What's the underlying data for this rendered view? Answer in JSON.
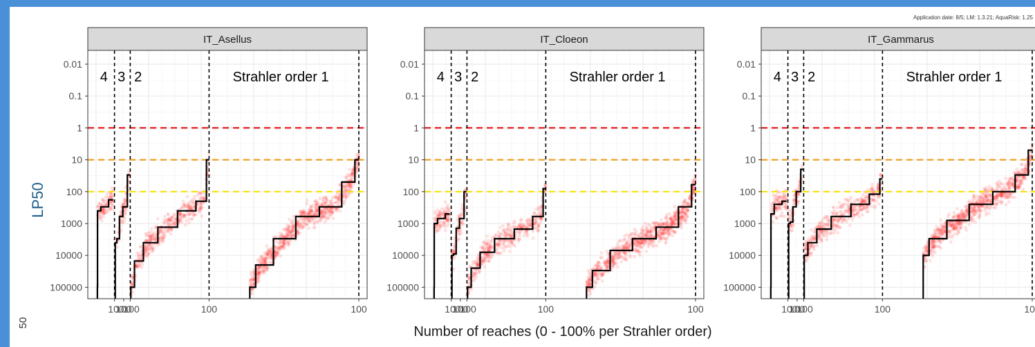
{
  "note": "Application date: 8/5; LM: 1.3.21; AquaRisk: 1.25",
  "corner_label": "50",
  "chart_data": {
    "type": "scatter",
    "y_label": "LP50",
    "x_label": "Number of reaches (0 - 100% per Strahler order)",
    "y_scale": "log, reversed",
    "y_ticks": [
      "0.01",
      "0.1",
      "1",
      "10",
      "100",
      "1000",
      "10000",
      "100000"
    ],
    "x_ticks": [
      "100",
      "100",
      "100",
      "100",
      "100"
    ],
    "reference_lines": [
      {
        "value": 1,
        "color": "#e31a1c"
      },
      {
        "value": 10,
        "color": "#f0a020"
      },
      {
        "value": 100,
        "color": "#f5e200"
      }
    ],
    "order_labels": [
      "4",
      "3",
      "2",
      "Strahler order 1"
    ],
    "order_segments": [
      {
        "order": "4",
        "from": 0,
        "to": 7
      },
      {
        "order": "3",
        "from": 7,
        "to": 13
      },
      {
        "order": "2",
        "from": 13,
        "to": 43
      },
      {
        "order": "1",
        "from": 43,
        "to": 100
      }
    ],
    "grid": true,
    "panels": [
      {
        "name": "IT_Asellus",
        "median": [
          {
            "segment": "4",
            "points": [
              [
                0.5,
                100000
              ],
              [
                0.6,
                400
              ],
              [
                3,
                300
              ],
              [
                6.5,
                180
              ]
            ]
          },
          {
            "segment": "3",
            "points": [
              [
                7.3,
                4000
              ],
              [
                8.5,
                3000
              ],
              [
                9.3,
                600
              ],
              [
                11,
                300
              ],
              [
                12.8,
                30
              ]
            ]
          },
          {
            "segment": "2",
            "points": [
              [
                13.2,
                100000
              ],
              [
                16,
                15000
              ],
              [
                20,
                4000
              ],
              [
                27,
                1300
              ],
              [
                35,
                400
              ],
              [
                41,
                200
              ],
              [
                43,
                10
              ]
            ]
          },
          {
            "segment": "1",
            "points": [
              [
                58.5,
                100000
              ],
              [
                63,
                20000
              ],
              [
                72,
                3000
              ],
              [
                80,
                600
              ],
              [
                90,
                300
              ],
              [
                97,
                50
              ],
              [
                100,
                10
              ]
            ]
          }
        ]
      },
      {
        "name": "IT_Cloeon",
        "median": [
          {
            "segment": "4",
            "points": [
              [
                0.5,
                100000
              ],
              [
                0.6,
                1000
              ],
              [
                3,
                700
              ],
              [
                6.5,
                500
              ]
            ]
          },
          {
            "segment": "3",
            "points": [
              [
                7.3,
                10000
              ],
              [
                8.5,
                9000
              ],
              [
                9.3,
                1400
              ],
              [
                11,
                700
              ],
              [
                12.8,
                100
              ]
            ]
          },
          {
            "segment": "2",
            "points": [
              [
                13.2,
                100000
              ],
              [
                16,
                25000
              ],
              [
                20,
                8000
              ],
              [
                27,
                3000
              ],
              [
                35,
                1500
              ],
              [
                41,
                600
              ],
              [
                43,
                80
              ]
            ]
          },
          {
            "segment": "1",
            "points": [
              [
                58.5,
                100000
              ],
              [
                63,
                30000
              ],
              [
                72,
                7000
              ],
              [
                80,
                3000
              ],
              [
                90,
                1300
              ],
              [
                97,
                300
              ],
              [
                100,
                60
              ]
            ]
          }
        ]
      },
      {
        "name": "IT_Gammarus",
        "median": [
          {
            "segment": "4",
            "points": [
              [
                0.5,
                100000
              ],
              [
                0.6,
                500
              ],
              [
                3,
                250
              ],
              [
                6.5,
                200
              ]
            ]
          },
          {
            "segment": "3",
            "points": [
              [
                7.3,
                1000
              ],
              [
                8.5,
                900
              ],
              [
                9.3,
                300
              ],
              [
                11,
                100
              ],
              [
                12.8,
                20
              ]
            ]
          },
          {
            "segment": "2",
            "points": [
              [
                13.2,
                10000
              ],
              [
                16,
                4000
              ],
              [
                20,
                1500
              ],
              [
                27,
                600
              ],
              [
                35,
                250
              ],
              [
                41,
                120
              ],
              [
                43,
                40
              ]
            ]
          },
          {
            "segment": "1",
            "points": [
              [
                58.5,
                10000
              ],
              [
                63,
                3000
              ],
              [
                72,
                800
              ],
              [
                80,
                250
              ],
              [
                90,
                100
              ],
              [
                97,
                30
              ],
              [
                100,
                5
              ]
            ]
          }
        ]
      }
    ]
  }
}
